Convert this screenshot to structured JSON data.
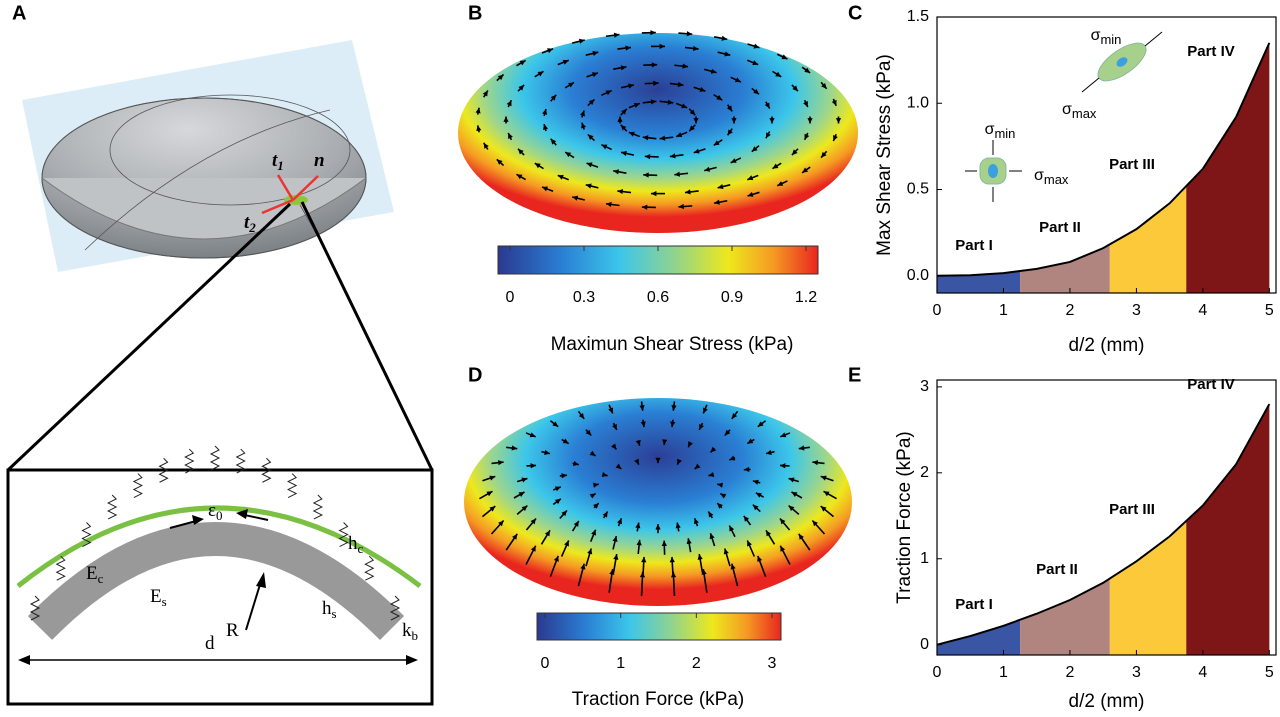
{
  "panel_labels": [
    "A",
    "B",
    "C",
    "D",
    "E"
  ],
  "panel_a": {
    "vectors": [
      {
        "base": "t",
        "sub": "1"
      },
      {
        "base": "t",
        "sub": "2"
      },
      {
        "base": "n"
      }
    ],
    "inset": [
      {
        "base": "E",
        "sub": "c"
      },
      {
        "base": "ε",
        "sub": "0"
      },
      {
        "base": "h",
        "sub": "c"
      },
      {
        "base": "E",
        "sub": "s"
      },
      {
        "base": "h",
        "sub": "s"
      },
      {
        "base": "R"
      },
      {
        "base": "k",
        "sub": "b"
      },
      {
        "base": "d"
      }
    ]
  },
  "colorbars": [
    {
      "label": "Maximun Shear Stress (kPa)",
      "lim": [
        0,
        1.2
      ],
      "ticks": [
        0,
        0.3,
        0.6,
        0.9,
        1.2
      ]
    },
    {
      "label": "Traction Force (kPa)",
      "lim": [
        0,
        3
      ],
      "ticks": [
        0,
        1,
        2,
        3
      ]
    }
  ],
  "chart_data": [
    {
      "type": "area",
      "xlabel": "d/2 (mm)",
      "ylabel": "Max Shear Stress (kPa)",
      "x": [
        0,
        0.5,
        1,
        1.5,
        2,
        2.5,
        3,
        3.5,
        4,
        4.5,
        5
      ],
      "values": [
        0,
        0.003,
        0.015,
        0.04,
        0.08,
        0.16,
        0.27,
        0.42,
        0.62,
        0.92,
        1.35
      ],
      "line_color": "#000000",
      "xlim": [
        0,
        5.1
      ],
      "ylim": [
        -0.1,
        1.5
      ],
      "xticks": [
        0,
        1,
        2,
        3,
        4,
        5
      ],
      "yticks": [
        {
          "value": 0,
          "label": "0.0"
        },
        0.5,
        {
          "value": 1,
          "label": "1.0"
        },
        1.5
      ],
      "regions": [
        {
          "name": "Part I",
          "color": "#3b55a5",
          "xrange": [
            0,
            1.25
          ]
        },
        {
          "name": "Part II",
          "color": "#b08580",
          "xrange": [
            1.25,
            2.6
          ]
        },
        {
          "name": "Part III",
          "color": "#fcc93a",
          "xrange": [
            2.6,
            3.75
          ]
        },
        {
          "name": "Part IV",
          "color": "#7e1517",
          "xrange": [
            3.75,
            5
          ]
        }
      ],
      "insets": [
        {
          "base": "σ",
          "sub": "min"
        },
        {
          "base": "σ",
          "sub": "max"
        },
        {
          "base": "σ",
          "sub": "min"
        },
        {
          "base": "σ",
          "sub": "max"
        }
      ]
    },
    {
      "type": "area",
      "xlabel": "d/2 (mm)",
      "ylabel": "Traction Force (kPa)",
      "x": [
        0,
        0.5,
        1,
        1.5,
        2,
        2.5,
        3,
        3.5,
        4,
        4.5,
        5
      ],
      "values": [
        0,
        0.1,
        0.22,
        0.36,
        0.52,
        0.72,
        0.97,
        1.26,
        1.62,
        2.1,
        2.8
      ],
      "line_color": "#000000",
      "xlim": [
        0,
        5.1
      ],
      "ylim": [
        -0.12,
        3.08
      ],
      "xticks": [
        0,
        1,
        2,
        3,
        4,
        5
      ],
      "yticks": [
        0,
        1,
        2,
        3
      ],
      "regions": [
        {
          "name": "Part I",
          "color": "#3b55a5",
          "xrange": [
            0,
            1.25
          ]
        },
        {
          "name": "Part II",
          "color": "#b08580",
          "xrange": [
            1.25,
            2.6
          ]
        },
        {
          "name": "Part III",
          "color": "#fcc93a",
          "xrange": [
            2.6,
            3.75
          ]
        },
        {
          "name": "Part IV",
          "color": "#7e1517",
          "xrange": [
            3.75,
            5
          ]
        }
      ]
    }
  ]
}
